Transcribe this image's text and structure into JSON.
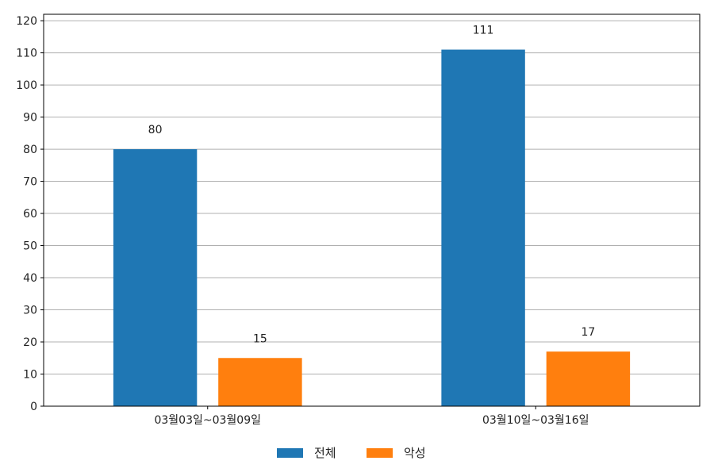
{
  "chart_data": {
    "type": "bar",
    "categories": [
      "03월03일~03월09일",
      "03월10일~03월16일"
    ],
    "series": [
      {
        "name": "전체",
        "values": [
          80,
          111
        ],
        "color": "#1f77b4"
      },
      {
        "name": "악성",
        "values": [
          15,
          17
        ],
        "color": "#ff7f0e"
      }
    ],
    "ylim": [
      0,
      122
    ],
    "yticks": [
      0,
      10,
      20,
      30,
      40,
      50,
      60,
      70,
      80,
      90,
      100,
      110,
      120
    ],
    "grid": true,
    "legend_position": "bottom-center",
    "data_labels": true
  }
}
